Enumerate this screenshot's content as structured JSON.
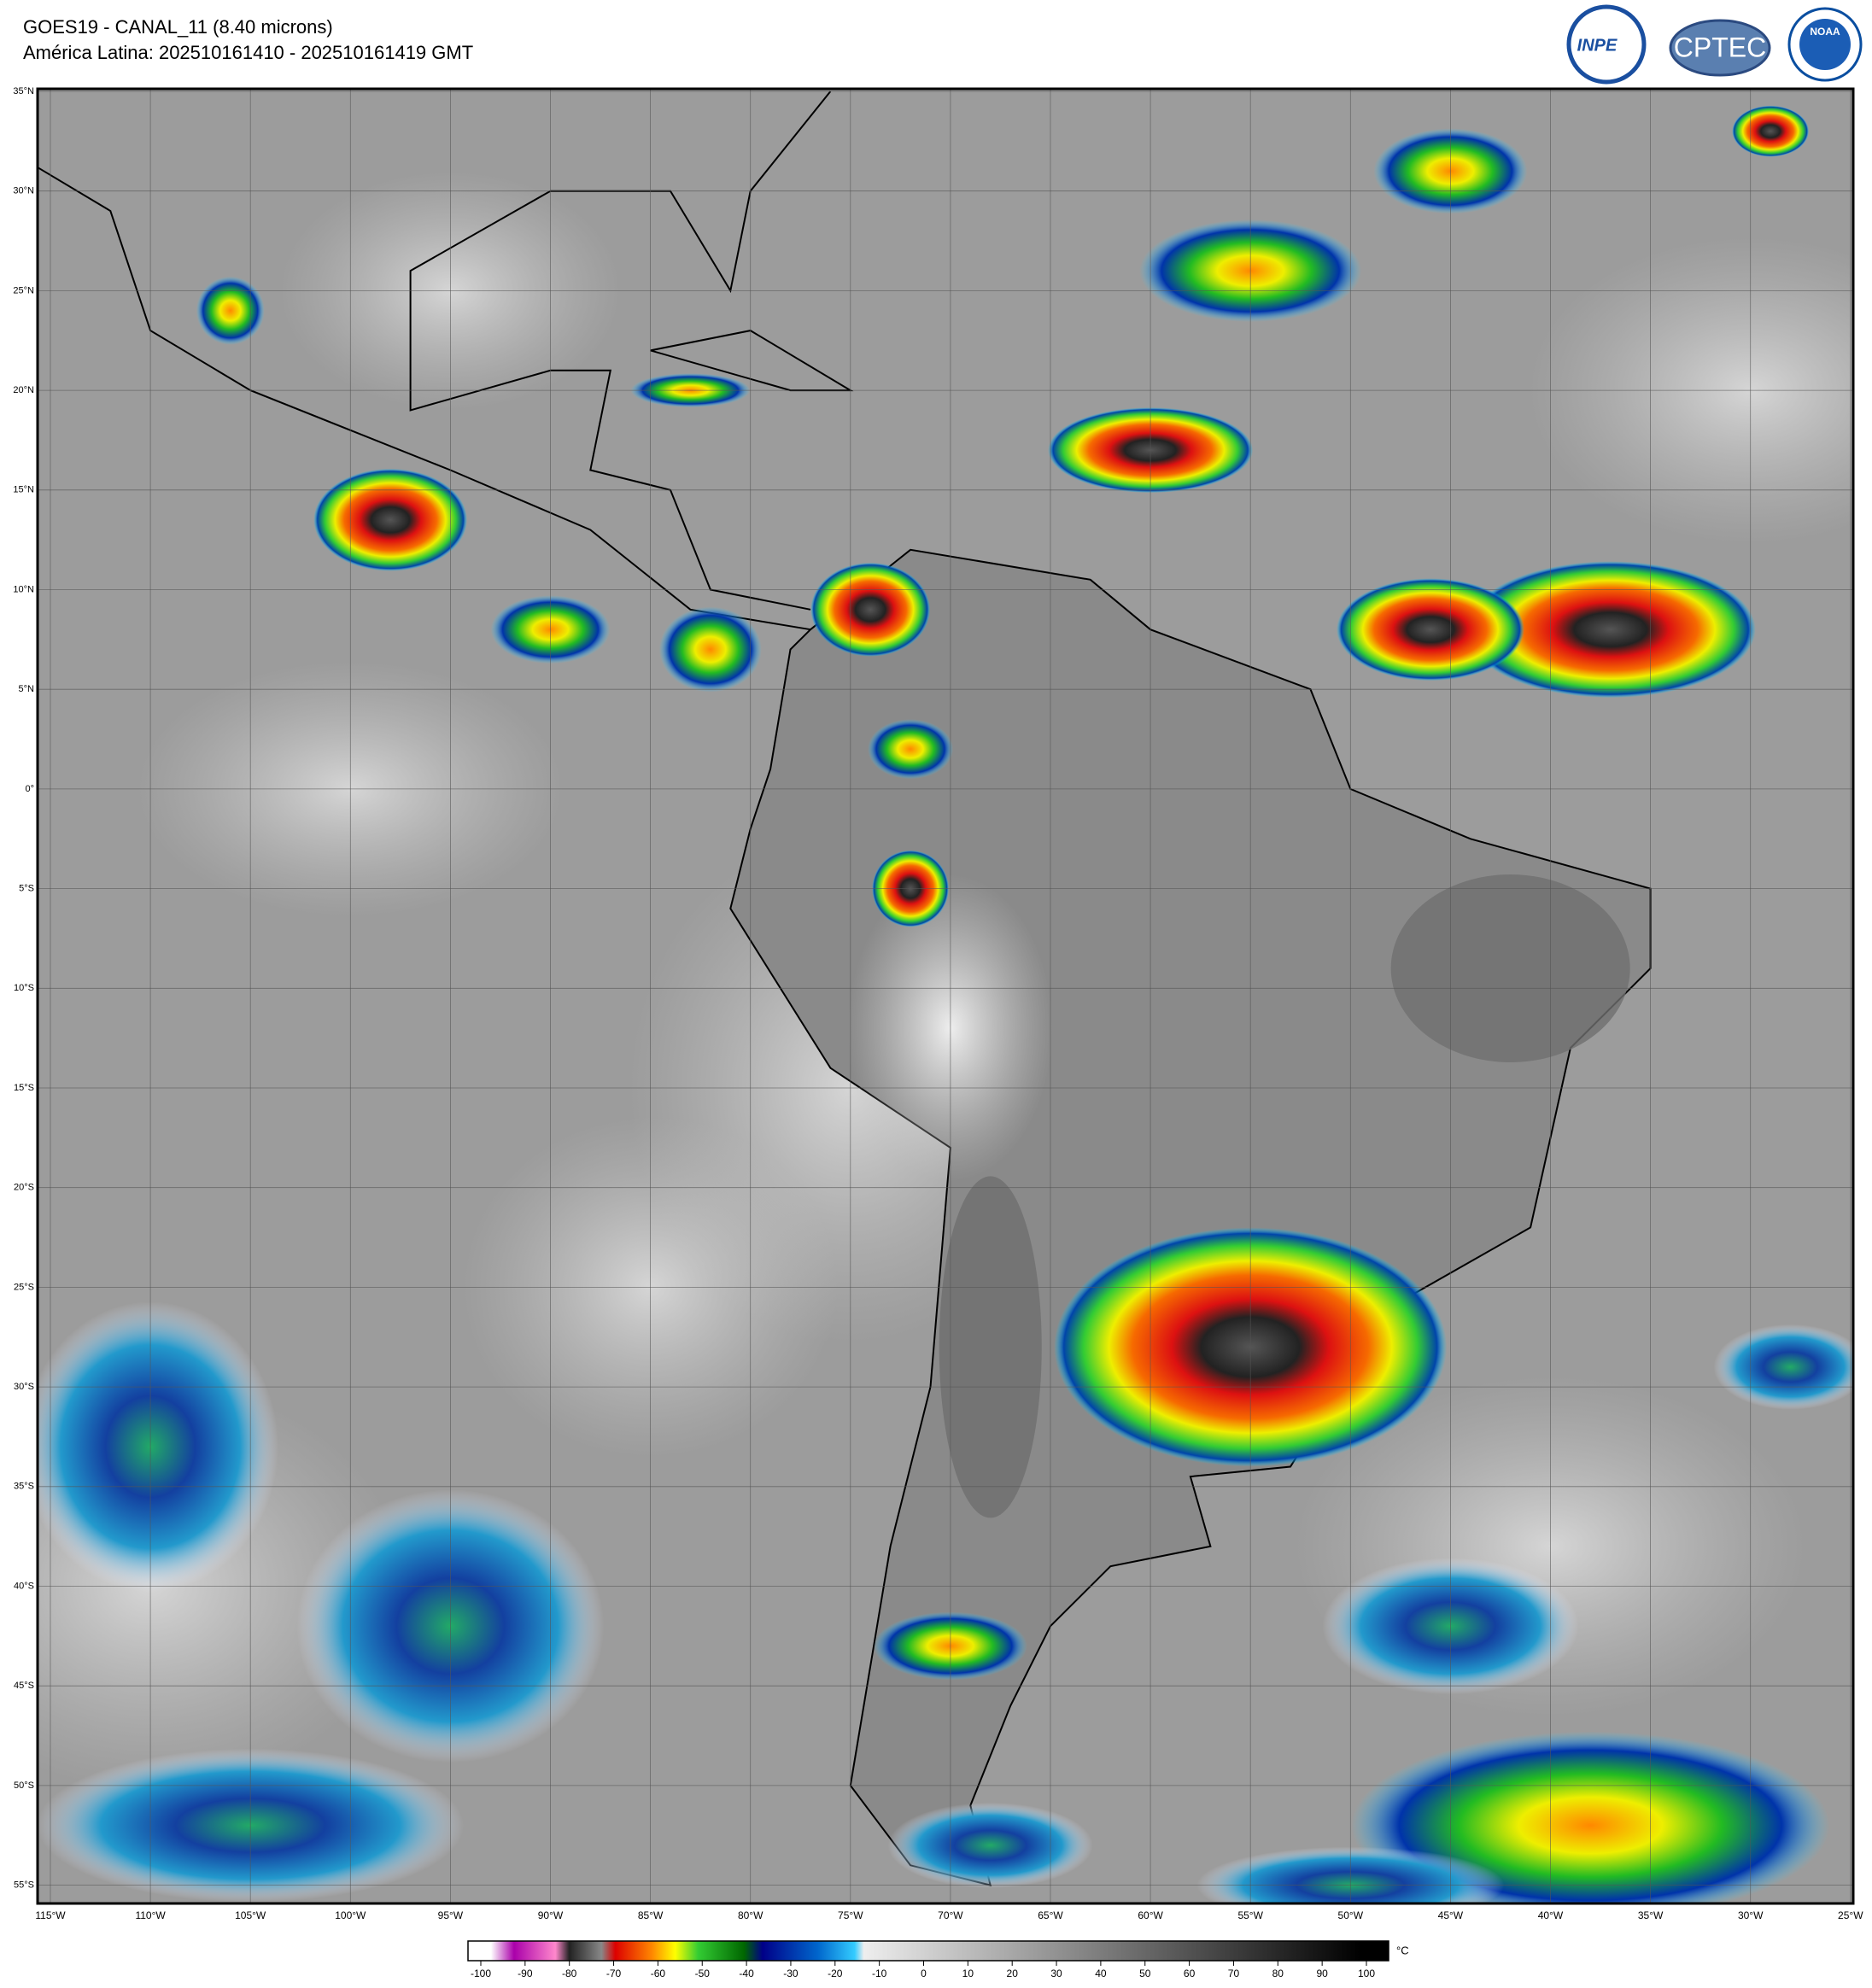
{
  "header": {
    "title": "GOES19 - CANAL_11 (8.40 microns)",
    "subtitle": "América Latina: 202510161410 - 202510161419 GMT"
  },
  "logos": [
    "INPE",
    "CPTEC",
    "NOAA"
  ],
  "map": {
    "lat_labels": [
      "35°N",
      "30°N",
      "25°N",
      "20°N",
      "15°N",
      "10°N",
      "5°N",
      "0°",
      "5°S",
      "10°S",
      "15°S",
      "20°S",
      "25°S",
      "30°S",
      "35°S",
      "40°S",
      "45°S",
      "50°S",
      "55°S"
    ],
    "lon_labels": [
      "115°W",
      "110°W",
      "105°W",
      "100°W",
      "95°W",
      "90°W",
      "85°W",
      "80°W",
      "75°W",
      "70°W",
      "65°W",
      "60°W",
      "55°W",
      "50°W",
      "45°W",
      "40°W",
      "35°W",
      "30°W",
      "25°W"
    ]
  },
  "colorbar": {
    "ticks": [
      -100,
      -90,
      -80,
      -70,
      -60,
      -50,
      -40,
      -30,
      -20,
      -10,
      0,
      10,
      20,
      30,
      40,
      50,
      60,
      70,
      80,
      90,
      100
    ],
    "unit": "°C"
  }
}
